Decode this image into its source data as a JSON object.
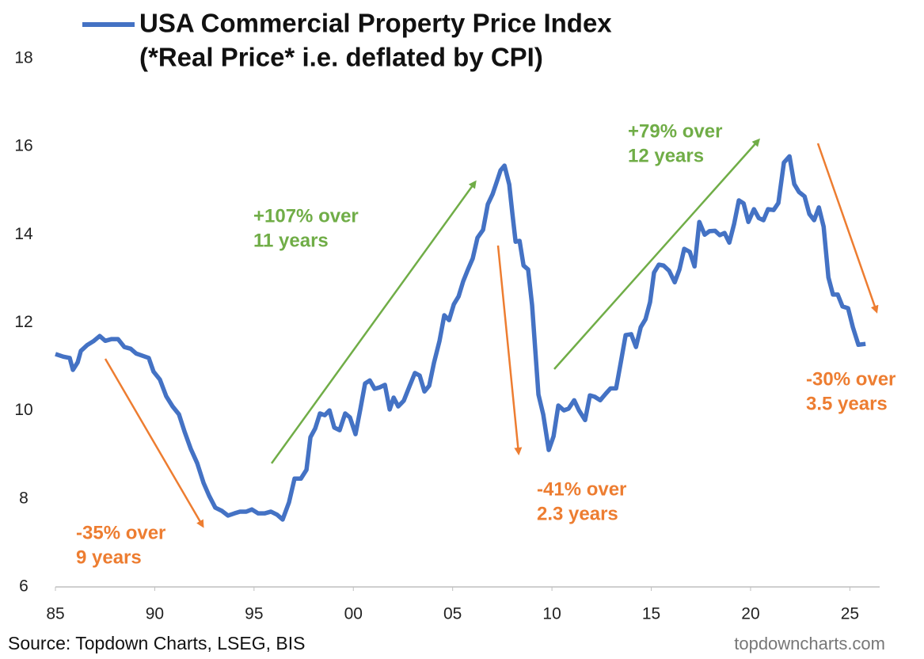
{
  "chart_data": {
    "type": "line",
    "title": "(*Real Price* i.e. deflated by CPI)",
    "source": "Source: Topdown Charts, LSEG, BIS",
    "watermark": "topdowncharts.com",
    "annotations": [
      {
        "lines": [
          "-35% over",
          "9 years"
        ]
      },
      {
        "lines": [
          "+107% over",
          "11 years"
        ]
      },
      {
        "lines": [
          "-41% over",
          "2.3 years"
        ]
      },
      {
        "lines": [
          "+79% over",
          "12 years"
        ]
      },
      {
        "lines": [
          "-30% over",
          "3.5 years"
        ]
      }
    ],
    "x": [
      1985.0,
      1985.4,
      1985.72,
      1985.88,
      1986.12,
      1986.28,
      1986.59,
      1986.91,
      1987.23,
      1987.51,
      1987.83,
      1988.15,
      1988.47,
      1988.79,
      1989.07,
      1989.39,
      1989.7,
      1989.94,
      1990.26,
      1990.58,
      1990.9,
      1991.22,
      1991.5,
      1991.82,
      1992.14,
      1992.46,
      1992.74,
      1993.05,
      1993.37,
      1993.69,
      1994.01,
      1994.29,
      1994.61,
      1994.89,
      1995.21,
      1995.53,
      1995.85,
      1996.16,
      1996.44,
      1996.76,
      1997.04,
      1997.36,
      1997.64,
      1997.84,
      1998.08,
      1998.32,
      1998.56,
      1998.8,
      1999.04,
      1999.31,
      1999.59,
      1999.83,
      2000.11,
      2000.35,
      2000.59,
      2000.83,
      2001.07,
      2001.31,
      2001.59,
      2001.83,
      2002.03,
      2002.26,
      2002.54,
      2002.82,
      2003.1,
      2003.34,
      2003.58,
      2003.82,
      2004.06,
      2004.34,
      2004.58,
      2004.82,
      2005.06,
      2005.3,
      2005.53,
      2005.77,
      2006.01,
      2006.25,
      2006.53,
      2006.77,
      2007.01,
      2007.25,
      2007.41,
      2007.61,
      2007.85,
      2008.01,
      2008.17,
      2008.37,
      2008.57,
      2008.8,
      2009.0,
      2009.32,
      2009.56,
      2009.84,
      2010.08,
      2010.32,
      2010.6,
      2010.84,
      2011.12,
      2011.36,
      2011.67,
      2011.91,
      2012.15,
      2012.43,
      2012.71,
      2012.95,
      2013.23,
      2013.47,
      2013.71,
      2013.99,
      2014.23,
      2014.47,
      2014.71,
      2014.94,
      2015.14,
      2015.38,
      2015.62,
      2015.9,
      2016.18,
      2016.42,
      2016.66,
      2016.94,
      2017.18,
      2017.42,
      2017.69,
      2017.93,
      2018.21,
      2018.45,
      2018.69,
      2018.93,
      2019.17,
      2019.41,
      2019.65,
      2019.89,
      2020.17,
      2020.41,
      2020.65,
      2020.88,
      2021.16,
      2021.4,
      2021.68,
      2021.96,
      2022.2,
      2022.44,
      2022.72,
      2022.96,
      2023.2,
      2023.44,
      2023.68,
      2023.92,
      2024.15,
      2024.39,
      2024.63,
      2024.91,
      2025.15,
      2025.43,
      2025.79
    ],
    "series": [
      {
        "name": "USA Commercial Property Price Index",
        "color": "#4472c4",
        "values": [
          11.29,
          11.23,
          11.2,
          10.93,
          11.1,
          11.36,
          11.49,
          11.58,
          11.7,
          11.59,
          11.63,
          11.63,
          11.45,
          11.41,
          11.3,
          11.25,
          11.2,
          10.89,
          10.71,
          10.33,
          10.1,
          9.92,
          9.53,
          9.13,
          8.81,
          8.36,
          8.07,
          7.8,
          7.73,
          7.62,
          7.67,
          7.71,
          7.71,
          7.76,
          7.67,
          7.67,
          7.71,
          7.64,
          7.53,
          7.92,
          8.46,
          8.46,
          8.66,
          9.4,
          9.6,
          9.94,
          9.9,
          10.01,
          9.62,
          9.56,
          9.94,
          9.85,
          9.47,
          10.03,
          10.62,
          10.69,
          10.5,
          10.53,
          10.59,
          10.03,
          10.3,
          10.1,
          10.23,
          10.55,
          10.86,
          10.8,
          10.44,
          10.57,
          11.09,
          11.59,
          12.17,
          12.06,
          12.42,
          12.6,
          12.94,
          13.21,
          13.46,
          13.93,
          14.11,
          14.69,
          14.92,
          15.24,
          15.46,
          15.57,
          15.14,
          14.47,
          13.84,
          13.86,
          13.3,
          13.21,
          12.4,
          10.37,
          9.92,
          9.11,
          9.42,
          10.12,
          10.01,
          10.05,
          10.24,
          10.01,
          9.79,
          10.35,
          10.32,
          10.24,
          10.39,
          10.51,
          10.51,
          11.11,
          11.72,
          11.74,
          11.45,
          11.9,
          12.08,
          12.47,
          13.14,
          13.32,
          13.3,
          13.18,
          12.92,
          13.21,
          13.68,
          13.61,
          13.28,
          14.29,
          14.0,
          14.08,
          14.09,
          13.99,
          14.04,
          13.82,
          14.24,
          14.78,
          14.71,
          14.29,
          14.58,
          14.38,
          14.33,
          14.58,
          14.56,
          14.72,
          15.64,
          15.78,
          15.15,
          14.97,
          14.87,
          14.47,
          14.33,
          14.62,
          14.18,
          13.03,
          12.64,
          12.64,
          12.37,
          12.33,
          11.9,
          11.5,
          11.52
        ]
      }
    ],
    "xlim": [
      1985,
      2026.5
    ],
    "xticks": [
      {
        "value": 1985,
        "label": "85"
      },
      {
        "value": 1990,
        "label": "90"
      },
      {
        "value": 1995,
        "label": "95"
      },
      {
        "value": 2000,
        "label": "00"
      },
      {
        "value": 2005,
        "label": "05"
      },
      {
        "value": 2010,
        "label": "10"
      },
      {
        "value": 2015,
        "label": "15"
      },
      {
        "value": 2020,
        "label": "20"
      },
      {
        "value": 2025,
        "label": "25"
      }
    ],
    "ylim": [
      6,
      18
    ],
    "yticks": [
      6,
      8,
      10,
      12,
      14,
      16,
      18
    ],
    "grid": false
  }
}
